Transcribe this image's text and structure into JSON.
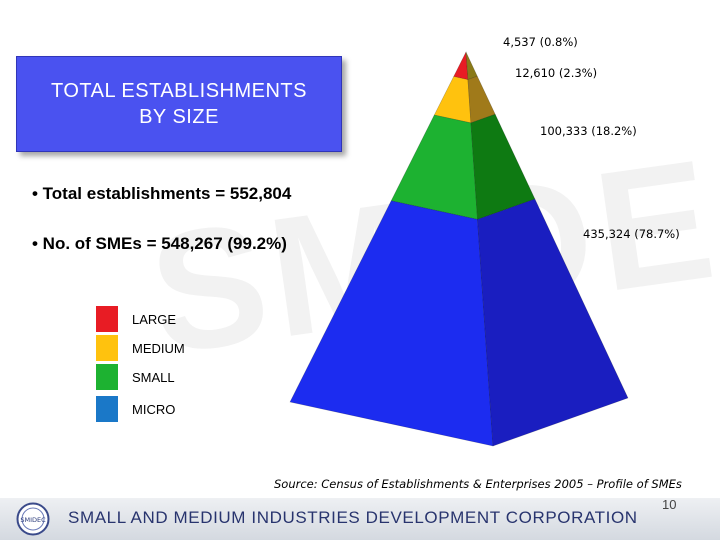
{
  "watermark": "SMIDEC",
  "title": "TOTAL ESTABLISHMENTS\nBY SIZE",
  "bullets": [
    "• Total establishments = 552,804",
    "• No. of SMEs = 548,267 (99.2%)"
  ],
  "chart_data": {
    "type": "pyramid",
    "title": "TOTAL ESTABLISHMENTS BY SIZE",
    "total": 552804,
    "segments": [
      {
        "name": "LARGE",
        "value": 4537,
        "percent": 0.8,
        "label": "4,537 (0.8%)",
        "color": "#e81c24",
        "side_color": "#8a7a18"
      },
      {
        "name": "MEDIUM",
        "value": 12610,
        "percent": 2.3,
        "label": "12,610 (2.3%)",
        "color": "#ffc20e",
        "side_color": "#a07a1a"
      },
      {
        "name": "SMALL",
        "value": 100333,
        "percent": 18.2,
        "label": "100,333 (18.2%)",
        "color": "#1db231",
        "side_color": "#0e7a12"
      },
      {
        "name": "MICRO",
        "value": 435324,
        "percent": 78.7,
        "label": "435,324 (78.7%)",
        "color": "#1c2cf0",
        "side_color": "#1a1ec0"
      }
    ]
  },
  "legend": [
    {
      "label": "LARGE",
      "color": "#e81c24"
    },
    {
      "label": "MEDIUM",
      "color": "#ffc20e"
    },
    {
      "label": "SMALL",
      "color": "#1db231"
    },
    {
      "label": "MICRO",
      "color": "#1a78c8"
    }
  ],
  "source": "Source: Census of Establishments & Enterprises 2005 – Profile of SMEs",
  "footer": {
    "organization": "SMALL AND MEDIUM INDUSTRIES DEVELOPMENT CORPORATION",
    "logo_text": "SMIDEC",
    "page_number": "10"
  }
}
